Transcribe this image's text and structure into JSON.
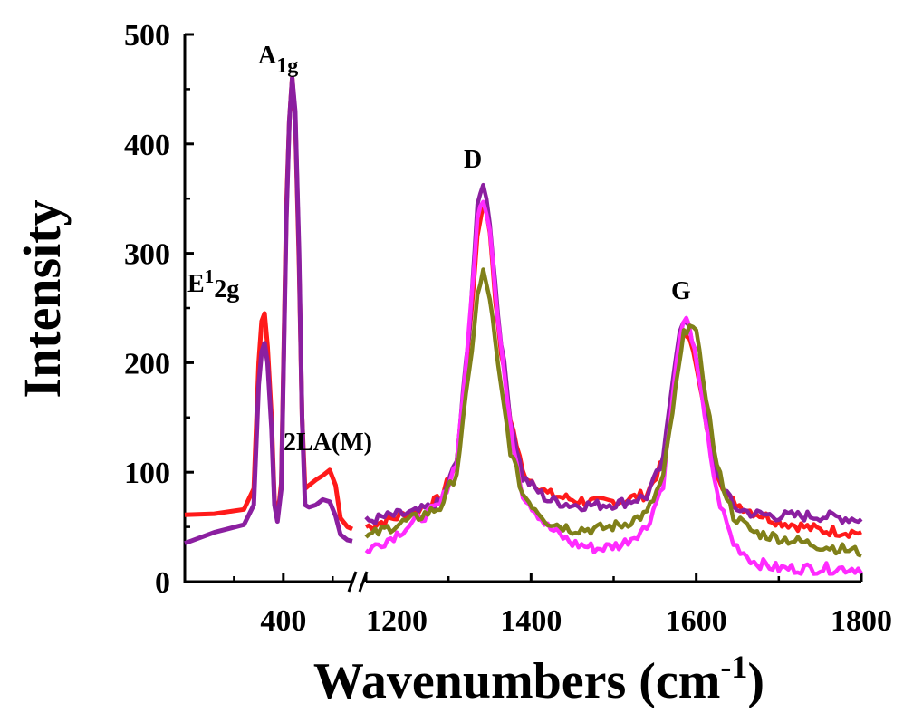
{
  "chart_data": {
    "type": "line",
    "xlabel": "Wavenumbers (cm",
    "xlabel_sup": "-1",
    "xlabel_close": ")",
    "ylabel": "Intensity",
    "ylim": [
      0,
      500
    ],
    "yticks": [
      "0",
      "100",
      "200",
      "300",
      "400",
      "500"
    ],
    "x_axis_break": true,
    "xlim_left": [
      300,
      470
    ],
    "xlim_right": [
      1200,
      1800
    ],
    "xticks_left": [
      "400"
    ],
    "xticks_right": [
      "1200",
      "1400",
      "1600",
      "1800"
    ],
    "annotations": {
      "e2g": {
        "base": "E",
        "sup": "1",
        "sub": "2g"
      },
      "a1g": {
        "base": "A",
        "sub": "1g"
      },
      "twola": "2LA(M)",
      "d": "D",
      "g": "G"
    },
    "series": [
      {
        "color": "#ff1a1a",
        "left": [
          [
            300,
            61
          ],
          [
            330,
            62
          ],
          [
            360,
            66
          ],
          [
            370,
            85
          ],
          [
            375,
            200
          ],
          [
            378,
            238
          ],
          [
            381,
            245
          ],
          [
            384,
            215
          ],
          [
            388,
            150
          ],
          [
            391,
            75
          ],
          [
            394,
            57
          ],
          [
            398,
            90
          ],
          [
            403,
            340
          ],
          [
            406,
            420
          ],
          [
            409,
            460
          ],
          [
            412,
            425
          ],
          [
            416,
            290
          ],
          [
            419,
            150
          ],
          [
            422,
            85
          ],
          [
            426,
            88
          ],
          [
            433,
            93
          ],
          [
            440,
            97
          ],
          [
            447,
            102
          ],
          [
            453,
            88
          ],
          [
            458,
            58
          ],
          [
            465,
            50
          ],
          [
            470,
            48
          ]
        ],
        "right": [
          [
            1200,
            50
          ],
          [
            1230,
            57
          ],
          [
            1260,
            65
          ],
          [
            1290,
            75
          ],
          [
            1310,
            110
          ],
          [
            1325,
            220
          ],
          [
            1335,
            315
          ],
          [
            1342,
            348
          ],
          [
            1350,
            320
          ],
          [
            1360,
            230
          ],
          [
            1375,
            150
          ],
          [
            1390,
            100
          ],
          [
            1420,
            80
          ],
          [
            1450,
            75
          ],
          [
            1480,
            72
          ],
          [
            1510,
            74
          ],
          [
            1540,
            80
          ],
          [
            1560,
            110
          ],
          [
            1575,
            190
          ],
          [
            1585,
            232
          ],
          [
            1592,
            225
          ],
          [
            1605,
            175
          ],
          [
            1620,
            110
          ],
          [
            1640,
            75
          ],
          [
            1665,
            65
          ],
          [
            1700,
            55
          ],
          [
            1750,
            47
          ],
          [
            1800,
            45
          ]
        ]
      },
      {
        "color": "#8b1fa0",
        "left": [
          [
            300,
            35
          ],
          [
            330,
            45
          ],
          [
            360,
            52
          ],
          [
            370,
            70
          ],
          [
            375,
            180
          ],
          [
            378,
            210
          ],
          [
            381,
            218
          ],
          [
            384,
            200
          ],
          [
            388,
            140
          ],
          [
            391,
            70
          ],
          [
            394,
            55
          ],
          [
            398,
            85
          ],
          [
            403,
            330
          ],
          [
            406,
            420
          ],
          [
            409,
            460
          ],
          [
            412,
            430
          ],
          [
            416,
            300
          ],
          [
            419,
            150
          ],
          [
            422,
            70
          ],
          [
            426,
            68
          ],
          [
            433,
            70
          ],
          [
            440,
            75
          ],
          [
            447,
            73
          ],
          [
            453,
            60
          ],
          [
            458,
            43
          ],
          [
            465,
            38
          ],
          [
            470,
            37
          ]
        ],
        "right": [
          [
            1200,
            55
          ],
          [
            1230,
            60
          ],
          [
            1260,
            63
          ],
          [
            1290,
            72
          ],
          [
            1310,
            110
          ],
          [
            1325,
            230
          ],
          [
            1335,
            340
          ],
          [
            1342,
            366
          ],
          [
            1350,
            330
          ],
          [
            1360,
            245
          ],
          [
            1375,
            150
          ],
          [
            1390,
            95
          ],
          [
            1420,
            75
          ],
          [
            1450,
            70
          ],
          [
            1480,
            70
          ],
          [
            1510,
            72
          ],
          [
            1540,
            78
          ],
          [
            1560,
            110
          ],
          [
            1572,
            190
          ],
          [
            1580,
            232
          ],
          [
            1588,
            236
          ],
          [
            1598,
            215
          ],
          [
            1610,
            160
          ],
          [
            1625,
            100
          ],
          [
            1645,
            68
          ],
          [
            1670,
            62
          ],
          [
            1700,
            60
          ],
          [
            1750,
            60
          ],
          [
            1800,
            57
          ]
        ]
      },
      {
        "color": "#ff2bff",
        "right": [
          [
            1200,
            28
          ],
          [
            1230,
            40
          ],
          [
            1260,
            55
          ],
          [
            1290,
            70
          ],
          [
            1310,
            110
          ],
          [
            1325,
            230
          ],
          [
            1335,
            330
          ],
          [
            1342,
            352
          ],
          [
            1350,
            325
          ],
          [
            1360,
            240
          ],
          [
            1375,
            140
          ],
          [
            1390,
            80
          ],
          [
            1420,
            50
          ],
          [
            1450,
            35
          ],
          [
            1480,
            30
          ],
          [
            1510,
            34
          ],
          [
            1540,
            50
          ],
          [
            1560,
            90
          ],
          [
            1572,
            170
          ],
          [
            1580,
            225
          ],
          [
            1588,
            238
          ],
          [
            1598,
            215
          ],
          [
            1610,
            150
          ],
          [
            1625,
            80
          ],
          [
            1645,
            35
          ],
          [
            1670,
            18
          ],
          [
            1700,
            12
          ],
          [
            1750,
            12
          ],
          [
            1800,
            12
          ]
        ]
      },
      {
        "color": "#808019",
        "right": [
          [
            1200,
            40
          ],
          [
            1230,
            50
          ],
          [
            1260,
            58
          ],
          [
            1290,
            68
          ],
          [
            1310,
            100
          ],
          [
            1325,
            190
          ],
          [
            1335,
            260
          ],
          [
            1342,
            282
          ],
          [
            1350,
            260
          ],
          [
            1360,
            195
          ],
          [
            1375,
            120
          ],
          [
            1390,
            80
          ],
          [
            1420,
            55
          ],
          [
            1450,
            48
          ],
          [
            1480,
            48
          ],
          [
            1510,
            52
          ],
          [
            1540,
            62
          ],
          [
            1560,
            95
          ],
          [
            1575,
            175
          ],
          [
            1585,
            225
          ],
          [
            1592,
            238
          ],
          [
            1600,
            225
          ],
          [
            1612,
            170
          ],
          [
            1625,
            105
          ],
          [
            1645,
            60
          ],
          [
            1670,
            45
          ],
          [
            1700,
            40
          ],
          [
            1750,
            33
          ],
          [
            1800,
            27
          ]
        ]
      }
    ]
  }
}
